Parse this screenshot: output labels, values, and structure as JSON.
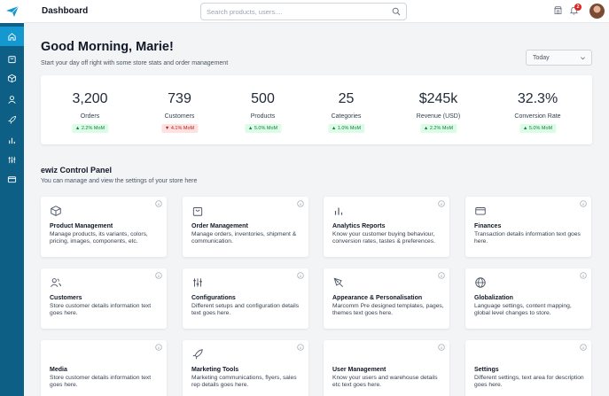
{
  "header": {
    "title": "Dashboard",
    "search_placeholder": "Search products, users....",
    "notification_count": "2"
  },
  "sidebar": {
    "logo_icon": "paper-plane-logo-icon",
    "items": [
      {
        "icon": "home-icon",
        "active": true
      },
      {
        "icon": "shopping-bag-icon",
        "active": false
      },
      {
        "icon": "box-icon",
        "active": false
      },
      {
        "icon": "user-icon",
        "active": false
      },
      {
        "icon": "rocket-icon",
        "active": false
      },
      {
        "icon": "bar-chart-icon",
        "active": false
      },
      {
        "icon": "sliders-icon",
        "active": false
      },
      {
        "icon": "credit-card-icon",
        "active": false
      }
    ]
  },
  "greeting": {
    "title": "Good Morning, Marie!",
    "subtitle": "Start your day off right with some store stats and order management"
  },
  "date_filter": {
    "value": "Today"
  },
  "stats": [
    {
      "value": "3,200",
      "label": "Orders",
      "delta": "▲ 2.2% MoM",
      "trend": "up"
    },
    {
      "value": "739",
      "label": "Customers",
      "delta": "▼ 4.1% MoM",
      "trend": "down"
    },
    {
      "value": "500",
      "label": "Products",
      "delta": "▲ 5.0% MoM",
      "trend": "up"
    },
    {
      "value": "25",
      "label": "Categories",
      "delta": "▲ 1.0% MoM",
      "trend": "up"
    },
    {
      "value": "$245k",
      "label": "Revenue (USD)",
      "delta": "▲ 2.2% MoM",
      "trend": "up"
    },
    {
      "value": "32.3%",
      "label": "Conversion Rate",
      "delta": "▲ 5.0% MoM",
      "trend": "up"
    }
  ],
  "control_panel": {
    "title": "ewiz Control Panel",
    "subtitle": "You can manage and view the settings of your store here",
    "cards": [
      {
        "title": "Product Management",
        "desc": "Manage products, its variants, colors, pricing, images, components, etc.",
        "icon": "box-icon"
      },
      {
        "title": "Order Management",
        "desc": "Manage orders, inventories, shipment & communication.",
        "icon": "shopping-bag-icon"
      },
      {
        "title": "Analytics Reports",
        "desc": "Know your customer buying behaviour, conversion rates, tastes & preferences.",
        "icon": "bar-chart-icon"
      },
      {
        "title": "Finances",
        "desc": "Transaction details information text goes here.",
        "icon": "credit-card-icon"
      },
      {
        "title": "Customers",
        "desc": "Store customer details information text goes here.",
        "icon": "users-icon"
      },
      {
        "title": "Configurations",
        "desc": "Different setups and configuration details text goes here.",
        "icon": "sliders-icon"
      },
      {
        "title": "Appearance & Personalisation",
        "desc": "Marcomm Pre designed templates, pages, themes text goes here.",
        "icon": "pen-tool-icon"
      },
      {
        "title": "Globalization",
        "desc": "Language settings, content mapping, global level changes to store.",
        "icon": "globe-icon"
      },
      {
        "title": "Media",
        "desc": "Store customer details information text goes here.",
        "icon": "image-icon"
      },
      {
        "title": "Marketing Tools",
        "desc": "Marketing communications, flyers, sales rep details goes here.",
        "icon": "rocket-icon"
      },
      {
        "title": "User Management",
        "desc": "Know your users and warehouse details etc text goes here.",
        "icon": "user-icon"
      },
      {
        "title": "Settings",
        "desc": "Different settings, text area for description goes here.",
        "icon": "gear-icon"
      }
    ]
  },
  "colors": {
    "sidebar_bg": "#0d5f86",
    "sidebar_active": "#1597cf",
    "positive": "#15803d",
    "negative": "#b91c1c"
  }
}
